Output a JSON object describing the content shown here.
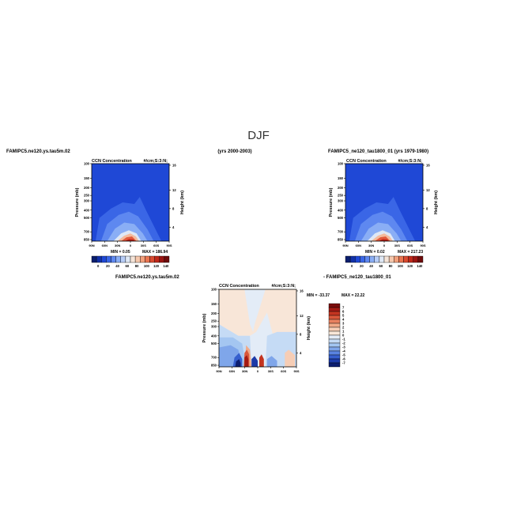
{
  "figure": {
    "title": "DJF",
    "top_left_case": "FAMIPC5.ne120.ys.tau5m.02",
    "years_label": "(yrs 2000-2003)",
    "top_right_case": "FAMIPC5_ne120_tau1800_01 (yrs 1979-1980)",
    "diff_case_a": "FAMIPC5.ne120.ys.tau5m.02",
    "diff_case_b": "- FAMIPC5_ne120_tau1800_01"
  },
  "chart_data": [
    {
      "type": "heatmap",
      "panel": "left",
      "title": "CCN Concentration",
      "units": "#/cm;S:3:N;",
      "ylabel": "Pressure (mb)",
      "ylabel_right": "Height (km)",
      "x_ticks": [
        "90N",
        "60N",
        "30N",
        "0",
        "30S",
        "60S",
        "90S"
      ],
      "y_ticks": [
        "100",
        "150",
        "200",
        "250",
        "300",
        "400",
        "500",
        "700",
        "850"
      ],
      "y_ticks_right": [
        "16",
        "12",
        "8",
        "4"
      ],
      "min_label": "MIN =    0.05",
      "max_label": "MAX =  186.94",
      "colorbar_labels": [
        "0",
        "20",
        "40",
        "60",
        "80",
        "100",
        "120",
        "140"
      ],
      "colors": [
        "#0b1f6e",
        "#1231a8",
        "#1f48d6",
        "#3a66e6",
        "#5e88f0",
        "#8aaef5",
        "#b7cdf7",
        "#dfe8f5",
        "#f5e4d8",
        "#f6c8ad",
        "#f2a07c",
        "#ea7551",
        "#d94a30",
        "#c0281a",
        "#9a1512",
        "#6e0b0b"
      ],
      "plume_max_value": 186.94,
      "plume_center": "30N-0"
    },
    {
      "type": "heatmap",
      "panel": "right",
      "title": "CCN Concentration",
      "units": "#/cm;S:3:N;",
      "ylabel": "Pressure (mb)",
      "ylabel_right": "Height (km)",
      "x_ticks": [
        "90N",
        "60N",
        "30N",
        "0",
        "30S",
        "60S",
        "90S"
      ],
      "y_ticks": [
        "100",
        "150",
        "200",
        "250",
        "300",
        "400",
        "500",
        "700",
        "850"
      ],
      "y_ticks_right": [
        "16",
        "12",
        "8",
        "4"
      ],
      "min_label": "MIN =    0.02",
      "max_label": "MAX =  217.23",
      "colorbar_labels": [
        "0",
        "20",
        "40",
        "60",
        "80",
        "100",
        "120",
        "140"
      ],
      "plume_max_value": 217.23,
      "plume_center": "30N-0"
    },
    {
      "type": "heatmap",
      "panel": "difference",
      "title": "CCN Concentration",
      "units": "#/cm;S:3:N;",
      "ylabel": "Pressure (mb)",
      "ylabel_right": "Height (km)",
      "x_ticks": [
        "90N",
        "60N",
        "30N",
        "0",
        "30S",
        "60S",
        "90S"
      ],
      "y_ticks": [
        "100",
        "150",
        "200",
        "250",
        "300",
        "400",
        "500",
        "700",
        "850"
      ],
      "y_ticks_right": [
        "16",
        "12",
        "8",
        "4"
      ],
      "min_label": "MIN = -33.37",
      "max_label": "MAX =  22.22",
      "colorbar_labels": [
        "7",
        "6",
        "5",
        "4",
        "3",
        "2",
        "1",
        "0",
        "-1",
        "-2",
        "-3",
        "-4",
        "-5",
        "-6",
        "-7"
      ],
      "colors": [
        "#7a0c0c",
        "#a31a14",
        "#c33420",
        "#d9573a",
        "#e8805f",
        "#f1a988",
        "#f6cdb5",
        "#f8e6d8",
        "#e3ecf7",
        "#c5dbf5",
        "#a4c6f1",
        "#7fa6ea",
        "#5a84e0",
        "#365fce",
        "#1c3aa8",
        "#0c1e70"
      ]
    }
  ]
}
